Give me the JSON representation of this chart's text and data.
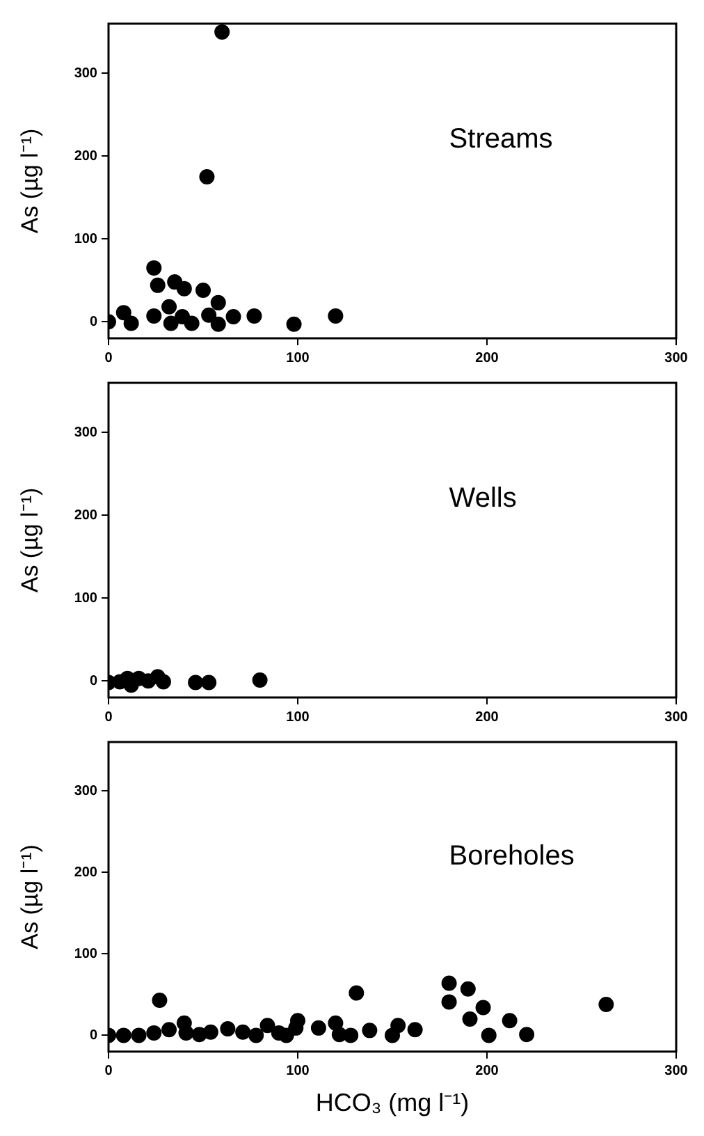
{
  "chart_data": [
    {
      "type": "scatter",
      "title": "Streams",
      "ylabel": "As (µg l⁻¹)",
      "marker": "circle",
      "grid": false,
      "xlim": [
        0,
        300
      ],
      "ylim": [
        -20,
        360
      ],
      "xticks": [
        0,
        100,
        200,
        300
      ],
      "yticks": [
        0,
        100,
        200,
        300
      ],
      "series": [
        {
          "color": "#000000",
          "x": [
            60,
            52,
            24,
            26,
            35,
            40,
            50,
            58,
            32,
            8,
            12,
            0,
            24,
            33,
            39,
            44,
            53,
            58,
            66,
            77,
            98,
            120
          ],
          "values": [
            350,
            175,
            65,
            44,
            48,
            40,
            38,
            23,
            18,
            11,
            -2,
            0,
            7,
            -2,
            6,
            -2,
            8,
            -3,
            6,
            7,
            -3,
            7
          ]
        }
      ]
    },
    {
      "type": "scatter",
      "title": "Wells",
      "ylabel": "As (µg l⁻¹)",
      "marker": "circle",
      "grid": false,
      "xlim": [
        0,
        300
      ],
      "ylim": [
        -20,
        360
      ],
      "xticks": [
        0,
        100,
        200,
        300
      ],
      "yticks": [
        0,
        100,
        200,
        300
      ],
      "series": [
        {
          "color": "#000000",
          "x": [
            0,
            6,
            10,
            12,
            16,
            21,
            26,
            29,
            46,
            53,
            80
          ],
          "values": [
            -2,
            -1,
            3,
            -5,
            3,
            0,
            5,
            -1,
            -2,
            -2,
            1
          ]
        }
      ]
    },
    {
      "type": "scatter",
      "title": "Boreholes",
      "xlabel": "HCO₃ (mg l⁻¹)",
      "ylabel": "As (µg l⁻¹)",
      "marker": "circle",
      "grid": false,
      "xlim": [
        0,
        300
      ],
      "ylim": [
        -20,
        360
      ],
      "xticks": [
        0,
        100,
        200,
        300
      ],
      "yticks": [
        0,
        100,
        200,
        300
      ],
      "series": [
        {
          "color": "#000000",
          "x": [
            0,
            8,
            16,
            24,
            27,
            32,
            40,
            41,
            48,
            54,
            63,
            71,
            78,
            84,
            90,
            94,
            100,
            99,
            111,
            120,
            122,
            128,
            131,
            138,
            150,
            153,
            162,
            180,
            180,
            190,
            191,
            198,
            201,
            212,
            221,
            263
          ],
          "values": [
            0,
            0,
            0,
            3,
            43,
            7,
            15,
            3,
            1,
            4,
            8,
            4,
            0,
            12,
            3,
            0,
            18,
            9,
            9,
            15,
            1,
            0,
            52,
            6,
            0,
            12,
            7,
            41,
            64,
            57,
            20,
            34,
            0,
            18,
            1,
            38
          ]
        }
      ]
    }
  ]
}
